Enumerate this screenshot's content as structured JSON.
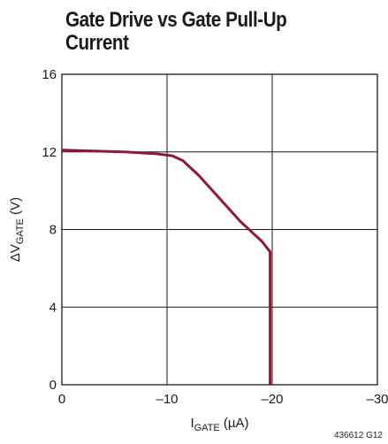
{
  "chart_data": {
    "type": "line",
    "title": "Gate Drive vs Gate Pull-Up Current",
    "xlabel_main": "I",
    "xlabel_sub": "GATE",
    "xlabel_unit": " (µA)",
    "ylabel_main": "ΔV",
    "ylabel_sub": "GATE",
    "ylabel_unit": " (V)",
    "xlim": [
      0,
      -30
    ],
    "ylim": [
      0,
      16
    ],
    "x_ticks": [
      0,
      -10,
      -20,
      -30
    ],
    "x_tick_labels": [
      "0",
      "–10",
      "–20",
      "–30"
    ],
    "y_ticks": [
      0,
      4,
      8,
      12,
      16
    ],
    "y_tick_labels": [
      "0",
      "4",
      "8",
      "12",
      "16"
    ],
    "grid": true,
    "series_color": "#8b1a3a",
    "series": [
      {
        "x": [
          0,
          -3,
          -6,
          -9,
          -10.5,
          -11.5,
          -13,
          -15,
          -17,
          -19,
          -19.8,
          -19.8
        ],
        "y": [
          12.1,
          12.05,
          12.0,
          11.9,
          11.8,
          11.55,
          10.8,
          9.6,
          8.4,
          7.4,
          6.85,
          0
        ]
      }
    ]
  },
  "figure_code": "436612 G12"
}
